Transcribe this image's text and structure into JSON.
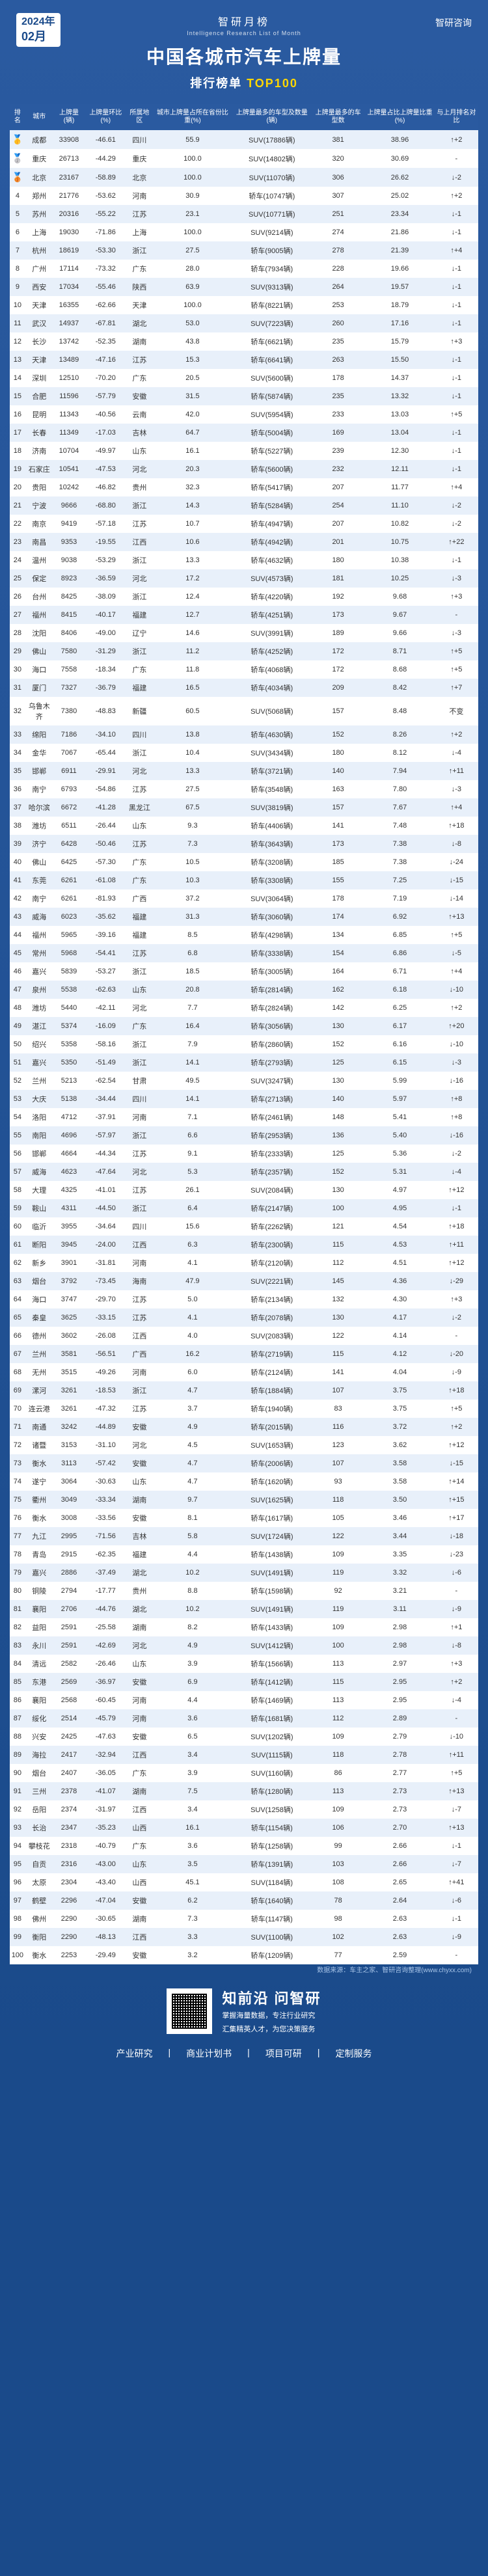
{
  "date": {
    "year": "2024年",
    "month": "02月"
  },
  "logo": "智研咨询",
  "header": {
    "small": "智研月榜",
    "en": "Intelligence Research List of Month",
    "main": "中国各城市汽车上牌量",
    "sub_a": "排行榜单",
    "sub_b": "TOP100"
  },
  "columns": [
    "排名",
    "城市",
    "上牌量(辆)",
    "上牌量环比(%)",
    "所属地区",
    "城市上牌量占所在省份比重(%)",
    "上牌量最多的车型及数量(辆)",
    "上牌量最多的车型数",
    "上牌量占比上牌量比重(%)",
    "与上月排名对比"
  ],
  "rows": [
    [
      1,
      "成都",
      33908,
      "-46.61",
      "四川",
      "55.9",
      "SUV(17886辆)",
      381,
      "38.96",
      "↑+2"
    ],
    [
      2,
      "重庆",
      26713,
      "-44.29",
      "重庆",
      "100.0",
      "SUV(14802辆)",
      320,
      "30.69",
      "-"
    ],
    [
      3,
      "北京",
      23167,
      "-58.89",
      "北京",
      "100.0",
      "SUV(11070辆)",
      306,
      "26.62",
      "↓-2"
    ],
    [
      4,
      "郑州",
      21776,
      "-53.62",
      "河南",
      "30.9",
      "轿车(10747辆)",
      307,
      "25.02",
      "↑+2"
    ],
    [
      5,
      "苏州",
      20316,
      "-55.22",
      "江苏",
      "23.1",
      "SUV(10771辆)",
      251,
      "23.34",
      "↓-1"
    ],
    [
      6,
      "上海",
      19030,
      "-71.86",
      "上海",
      "100.0",
      "SUV(9214辆)",
      274,
      "21.86",
      "↓-1"
    ],
    [
      7,
      "杭州",
      18619,
      "-53.30",
      "浙江",
      "27.5",
      "轿车(9005辆)",
      278,
      "21.39",
      "↑+4"
    ],
    [
      8,
      "广州",
      17114,
      "-73.32",
      "广东",
      "28.0",
      "轿车(7934辆)",
      228,
      "19.66",
      "↓-1"
    ],
    [
      9,
      "西安",
      17034,
      "-55.46",
      "陕西",
      "63.9",
      "SUV(9313辆)",
      264,
      "19.57",
      "↓-1"
    ],
    [
      10,
      "天津",
      16355,
      "-62.66",
      "天津",
      "100.0",
      "轿车(8221辆)",
      253,
      "18.79",
      "↓-1"
    ],
    [
      11,
      "武汉",
      14937,
      "-67.81",
      "湖北",
      "53.0",
      "SUV(7223辆)",
      260,
      "17.16",
      "↓-1"
    ],
    [
      12,
      "长沙",
      13742,
      "-52.35",
      "湖南",
      "43.8",
      "轿车(6621辆)",
      235,
      "15.79",
      "↑+3"
    ],
    [
      13,
      "天津",
      13489,
      "-47.16",
      "江苏",
      "15.3",
      "轿车(6641辆)",
      263,
      "15.50",
      "↓-1"
    ],
    [
      14,
      "深圳",
      12510,
      "-70.20",
      "广东",
      "20.5",
      "SUV(5600辆)",
      178,
      "14.37",
      "↓-1"
    ],
    [
      15,
      "合肥",
      11596,
      "-57.79",
      "安徽",
      "31.5",
      "轿车(5874辆)",
      235,
      "13.32",
      "↓-1"
    ],
    [
      16,
      "昆明",
      11343,
      "-40.56",
      "云南",
      "42.0",
      "SUV(5954辆)",
      233,
      "13.03",
      "↑+5"
    ],
    [
      17,
      "长春",
      11349,
      "-17.03",
      "吉林",
      "64.7",
      "轿车(5004辆)",
      169,
      "13.04",
      "↓-1"
    ],
    [
      18,
      "济南",
      10704,
      "-49.97",
      "山东",
      "16.1",
      "轿车(5227辆)",
      239,
      "12.30",
      "↓-1"
    ],
    [
      19,
      "石家庄",
      10541,
      "-47.53",
      "河北",
      "20.3",
      "轿车(5600辆)",
      232,
      "12.11",
      "↓-1"
    ],
    [
      20,
      "贵阳",
      10242,
      "-46.82",
      "贵州",
      "32.3",
      "轿车(5417辆)",
      207,
      "11.77",
      "↑+4"
    ],
    [
      21,
      "宁波",
      9666,
      "-68.80",
      "浙江",
      "14.3",
      "轿车(5284辆)",
      254,
      "11.10",
      "↓-2"
    ],
    [
      22,
      "南京",
      9419,
      "-57.18",
      "江苏",
      "10.7",
      "轿车(4947辆)",
      207,
      "10.82",
      "↓-2"
    ],
    [
      23,
      "南昌",
      9353,
      "-19.55",
      "江西",
      "10.6",
      "轿车(4942辆)",
      201,
      "10.75",
      "↑+22"
    ],
    [
      24,
      "温州",
      9038,
      "-53.29",
      "浙江",
      "13.3",
      "轿车(4632辆)",
      180,
      "10.38",
      "↓-1"
    ],
    [
      25,
      "保定",
      8923,
      "-36.59",
      "河北",
      "17.2",
      "SUV(4573辆)",
      181,
      "10.25",
      "↓-3"
    ],
    [
      26,
      "台州",
      8425,
      "-38.09",
      "浙江",
      "12.4",
      "轿车(4220辆)",
      192,
      "9.68",
      "↑+3"
    ],
    [
      27,
      "福州",
      8415,
      "-40.17",
      "福建",
      "12.7",
      "轿车(4251辆)",
      173,
      "9.67",
      "-"
    ],
    [
      28,
      "沈阳",
      8406,
      "-49.00",
      "辽宁",
      "14.6",
      "SUV(3991辆)",
      189,
      "9.66",
      "↓-3"
    ],
    [
      29,
      "佛山",
      7580,
      "-31.29",
      "浙江",
      "11.2",
      "轿车(4252辆)",
      172,
      "8.71",
      "↑+5"
    ],
    [
      30,
      "海口",
      7558,
      "-18.34",
      "广东",
      "11.8",
      "轿车(4068辆)",
      172,
      "8.68",
      "↑+5"
    ],
    [
      31,
      "厦门",
      7327,
      "-36.79",
      "福建",
      "16.5",
      "轿车(4034辆)",
      209,
      "8.42",
      "↑+7"
    ],
    [
      32,
      "乌鲁木齐",
      7380,
      "-48.83",
      "新疆",
      "60.5",
      "SUV(5068辆)",
      157,
      "8.48",
      "不变"
    ],
    [
      33,
      "绵阳",
      7186,
      "-34.10",
      "四川",
      "13.8",
      "轿车(4630辆)",
      152,
      "8.26",
      "↑+2"
    ],
    [
      34,
      "金华",
      7067,
      "-65.44",
      "浙江",
      "10.4",
      "SUV(3434辆)",
      180,
      "8.12",
      "↓-4"
    ],
    [
      35,
      "邯郸",
      6911,
      "-29.91",
      "河北",
      "13.3",
      "轿车(3721辆)",
      140,
      "7.94",
      "↑+11"
    ],
    [
      36,
      "南宁",
      6793,
      "-54.86",
      "江苏",
      "27.5",
      "轿车(3548辆)",
      163,
      "7.80",
      "↓-3"
    ],
    [
      37,
      "哈尔滨",
      6672,
      "-41.28",
      "黑龙江",
      "67.5",
      "SUV(3819辆)",
      157,
      "7.67",
      "↑+4"
    ],
    [
      38,
      "潍坊",
      6511,
      "-26.44",
      "山东",
      "9.3",
      "轿车(4406辆)",
      141,
      "7.48",
      "↑+18"
    ],
    [
      39,
      "济宁",
      6428,
      "-50.46",
      "江苏",
      "7.3",
      "轿车(3643辆)",
      173,
      "7.38",
      "↓-8"
    ],
    [
      40,
      "佛山",
      6425,
      "-57.30",
      "广东",
      "10.5",
      "轿车(3208辆)",
      185,
      "7.38",
      "↓-24"
    ],
    [
      41,
      "东莞",
      6261,
      "-61.08",
      "广东",
      "10.3",
      "轿车(3308辆)",
      155,
      "7.25",
      "↓-15"
    ],
    [
      42,
      "南宁",
      6261,
      "-81.93",
      "广西",
      "37.2",
      "SUV(3064辆)",
      178,
      "7.19",
      "↓-14"
    ],
    [
      43,
      "威海",
      6023,
      "-35.62",
      "福建",
      "31.3",
      "轿车(3060辆)",
      174,
      "6.92",
      "↑+13"
    ],
    [
      44,
      "福州",
      5965,
      "-39.16",
      "福建",
      "8.5",
      "轿车(4298辆)",
      134,
      "6.85",
      "↑+5"
    ],
    [
      45,
      "常州",
      5968,
      "-54.41",
      "江苏",
      "6.8",
      "轿车(3338辆)",
      154,
      "6.86",
      "↓-5"
    ],
    [
      46,
      "嘉兴",
      5839,
      "-53.27",
      "浙江",
      "18.5",
      "轿车(3005辆)",
      164,
      "6.71",
      "↑+4"
    ],
    [
      47,
      "泉州",
      5538,
      "-62.63",
      "山东",
      "20.8",
      "轿车(2814辆)",
      162,
      "6.18",
      "↓-10"
    ],
    [
      48,
      "潍坊",
      5440,
      "-42.11",
      "河北",
      "7.7",
      "轿车(2824辆)",
      142,
      "6.25",
      "↑+2"
    ],
    [
      49,
      "湛江",
      5374,
      "-16.09",
      "广东",
      "16.4",
      "轿车(3056辆)",
      130,
      "6.17",
      "↑+20"
    ],
    [
      50,
      "绍兴",
      5358,
      "-58.16",
      "浙江",
      "7.9",
      "轿车(2860辆)",
      152,
      "6.16",
      "↓-10"
    ],
    [
      51,
      "嘉兴",
      5350,
      "-51.49",
      "浙江",
      "14.1",
      "轿车(2793辆)",
      125,
      "6.15",
      "↓-3"
    ],
    [
      52,
      "兰州",
      5213,
      "-62.54",
      "甘肃",
      "49.5",
      "SUV(3247辆)",
      130,
      "5.99",
      "↓-16"
    ],
    [
      53,
      "大庆",
      5138,
      "-34.44",
      "四川",
      "14.1",
      "轿车(2713辆)",
      140,
      "5.97",
      "↑+8"
    ],
    [
      54,
      "洛阳",
      4712,
      "-37.91",
      "河南",
      "7.1",
      "轿车(2461辆)",
      148,
      "5.41",
      "↑+8"
    ],
    [
      55,
      "南阳",
      4696,
      "-57.97",
      "浙江",
      "6.6",
      "轿车(2953辆)",
      136,
      "5.40",
      "↓-16"
    ],
    [
      56,
      "邯郸",
      4664,
      "-44.34",
      "江苏",
      "9.1",
      "轿车(2333辆)",
      125,
      "5.36",
      "↓-2"
    ],
    [
      57,
      "威海",
      4623,
      "-47.64",
      "河北",
      "5.3",
      "轿车(2357辆)",
      152,
      "5.31",
      "↓-4"
    ],
    [
      58,
      "大理",
      4325,
      "-41.01",
      "江苏",
      "26.1",
      "SUV(2084辆)",
      130,
      "4.97",
      "↑+12"
    ],
    [
      59,
      "鞍山",
      4311,
      "-44.50",
      "浙江",
      "6.4",
      "轿车(2147辆)",
      100,
      "4.95",
      "↓-1"
    ],
    [
      60,
      "临沂",
      3955,
      "-34.64",
      "四川",
      "15.6",
      "轿车(2262辆)",
      121,
      "4.54",
      "↑+18"
    ],
    [
      61,
      "断阳",
      3945,
      "-24.00",
      "江西",
      "6.3",
      "轿车(2300辆)",
      115,
      "4.53",
      "↑+11"
    ],
    [
      62,
      "新乡",
      3901,
      "-31.81",
      "河南",
      "4.1",
      "轿车(2120辆)",
      112,
      "4.51",
      "↑+12"
    ],
    [
      63,
      "烟台",
      3792,
      "-73.45",
      "海南",
      "47.9",
      "SUV(2221辆)",
      145,
      "4.36",
      "↓-29"
    ],
    [
      64,
      "海口",
      3747,
      "-29.70",
      "江苏",
      "5.0",
      "轿车(2134辆)",
      132,
      "4.30",
      "↑+3"
    ],
    [
      65,
      "秦皇",
      3625,
      "-33.15",
      "江苏",
      "4.1",
      "轿车(2078辆)",
      130,
      "4.17",
      "↓-2"
    ],
    [
      66,
      "德州",
      3602,
      "-26.08",
      "江西",
      "4.0",
      "SUV(2083辆)",
      122,
      "4.14",
      "-"
    ],
    [
      67,
      "兰州",
      3581,
      "-56.51",
      "广西",
      "16.2",
      "轿车(2719辆)",
      115,
      "4.12",
      "↓-20"
    ],
    [
      68,
      "无州",
      3515,
      "-49.26",
      "河南",
      "6.0",
      "轿车(2124辆)",
      141,
      "4.04",
      "↓-9"
    ],
    [
      69,
      "漯河",
      3261,
      "-18.53",
      "浙江",
      "4.7",
      "轿车(1884辆)",
      107,
      "3.75",
      "↑+18"
    ],
    [
      70,
      "连云港",
      3261,
      "-47.32",
      "江苏",
      "3.7",
      "轿车(1940辆)",
      83,
      "3.75",
      "↑+5"
    ],
    [
      71,
      "南通",
      3242,
      "-44.89",
      "安徽",
      "4.9",
      "轿车(2015辆)",
      116,
      "3.72",
      "↑+2"
    ],
    [
      72,
      "诸暨",
      3153,
      "-31.10",
      "河北",
      "4.5",
      "SUV(1653辆)",
      123,
      "3.62",
      "↑+12"
    ],
    [
      73,
      "衡水",
      3113,
      "-57.42",
      "安徽",
      "4.7",
      "轿车(2006辆)",
      107,
      "3.58",
      "↓-15"
    ],
    [
      74,
      "遂宁",
      3064,
      "-30.63",
      "山东",
      "4.7",
      "轿车(1620辆)",
      93,
      "3.58",
      "↑+14"
    ],
    [
      75,
      "衢州",
      3049,
      "-33.34",
      "湖南",
      "9.7",
      "SUV(1625辆)",
      118,
      "3.50",
      "↑+15"
    ],
    [
      76,
      "衡水",
      3008,
      "-33.56",
      "安徽",
      "8.1",
      "轿车(1617辆)",
      105,
      "3.46",
      "↑+17"
    ],
    [
      77,
      "九江",
      2995,
      "-71.56",
      "吉林",
      "5.8",
      "SUV(1724辆)",
      122,
      "3.44",
      "↓-18"
    ],
    [
      78,
      "青岛",
      2915,
      "-62.35",
      "福建",
      "4.4",
      "轿车(1438辆)",
      109,
      "3.35",
      "↓-23"
    ],
    [
      79,
      "嘉兴",
      2886,
      "-37.49",
      "湖北",
      "10.2",
      "SUV(1491辆)",
      119,
      "3.32",
      "↓-6"
    ],
    [
      80,
      "铜陵",
      2794,
      "-17.77",
      "贵州",
      "8.8",
      "轿车(1598辆)",
      92,
      "3.21",
      "-"
    ],
    [
      81,
      "襄阳",
      2706,
      "-44.76",
      "湖北",
      "10.2",
      "SUV(1491辆)",
      119,
      "3.11",
      "↓-9"
    ],
    [
      82,
      "益阳",
      2591,
      "-25.58",
      "湖南",
      "8.2",
      "轿车(1433辆)",
      109,
      "2.98",
      "↑+1"
    ],
    [
      83,
      "永川",
      2591,
      "-42.69",
      "河北",
      "4.9",
      "SUV(1412辆)",
      100,
      "2.98",
      "↓-8"
    ],
    [
      84,
      "清远",
      2582,
      "-26.46",
      "山东",
      "3.9",
      "轿车(1566辆)",
      113,
      "2.97",
      "↑+3"
    ],
    [
      85,
      "东港",
      2569,
      "-36.97",
      "安徽",
      "6.9",
      "轿车(1412辆)",
      115,
      "2.95",
      "↑+2"
    ],
    [
      86,
      "襄阳",
      2568,
      "-60.45",
      "河南",
      "4.4",
      "轿车(1469辆)",
      113,
      "2.95",
      "↓-4"
    ],
    [
      87,
      "绥化",
      2514,
      "-45.79",
      "河南",
      "3.6",
      "轿车(1681辆)",
      112,
      "2.89",
      "-"
    ],
    [
      88,
      "兴安",
      2425,
      "-47.63",
      "安徽",
      "6.5",
      "SUV(1202辆)",
      109,
      "2.79",
      "↓-10"
    ],
    [
      89,
      "海拉",
      2417,
      "-32.94",
      "江西",
      "3.4",
      "SUV(1115辆)",
      118,
      "2.78",
      "↑+11"
    ],
    [
      90,
      "烟台",
      2407,
      "-36.05",
      "广东",
      "3.9",
      "SUV(1160辆)",
      86,
      "2.77",
      "↑+5"
    ],
    [
      91,
      "三州",
      2378,
      "-41.07",
      "湖南",
      "7.5",
      "轿车(1280辆)",
      113,
      "2.73",
      "↑+13"
    ],
    [
      92,
      "岳阳",
      2374,
      "-31.97",
      "江西",
      "3.4",
      "SUV(1258辆)",
      109,
      "2.73",
      "↓-7"
    ],
    [
      93,
      "长治",
      2347,
      "-35.23",
      "山西",
      "16.1",
      "轿车(1154辆)",
      106,
      "2.70",
      "↑+13"
    ],
    [
      94,
      "攀枝花",
      2318,
      "-40.79",
      "广东",
      "3.6",
      "轿车(1258辆)",
      99,
      "2.66",
      "↓-1"
    ],
    [
      95,
      "自贡",
      2316,
      "-43.00",
      "山东",
      "3.5",
      "轿车(1391辆)",
      103,
      "2.66",
      "↓-7"
    ],
    [
      96,
      "太原",
      2304,
      "-43.40",
      "山西",
      "45.1",
      "SUV(1184辆)",
      108,
      "2.65",
      "↑+41"
    ],
    [
      97,
      "鹤壁",
      2296,
      "-47.04",
      "安徽",
      "6.2",
      "轿车(1640辆)",
      78,
      "2.64",
      "↓-6"
    ],
    [
      98,
      "佛州",
      2290,
      "-30.65",
      "湖南",
      "7.3",
      "轿车(1147辆)",
      98,
      "2.63",
      "↓-1"
    ],
    [
      99,
      "衡阳",
      2290,
      "-48.13",
      "江西",
      "3.3",
      "SUV(1100辆)",
      102,
      "2.63",
      "↓-9"
    ],
    [
      100,
      "衡水",
      2253,
      "-29.49",
      "安徽",
      "3.2",
      "轿车(1209辆)",
      77,
      "2.59",
      "-"
    ]
  ],
  "source": "数据来源：车主之家、智研咨询整理(www.chyxx.com)",
  "footer": {
    "brand": "知前沿 问智研",
    "desc1": "掌握海量数据，专注行业研究",
    "desc2": "汇集精英人才，为您决策服务",
    "nav": [
      "产业研究",
      "商业计划书",
      "项目可研",
      "定制服务"
    ]
  }
}
